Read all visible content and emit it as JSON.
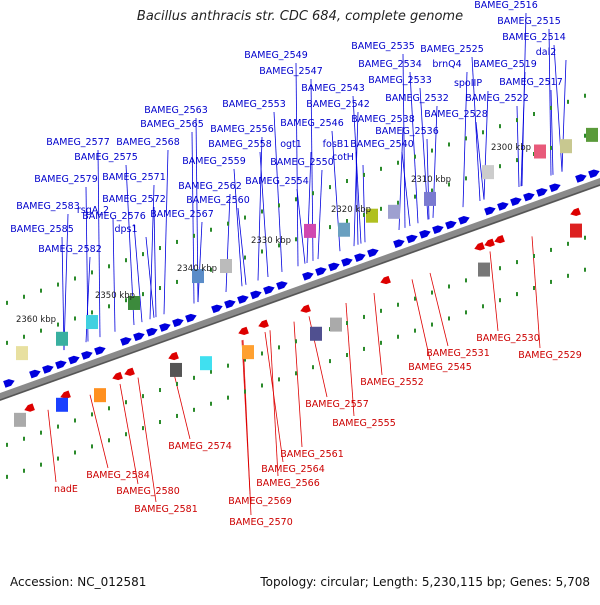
{
  "title": "Bacillus anthracis str. CDC 684, complete genome",
  "footer": {
    "accession": "Accession: NC_012581",
    "summary": "Topology: circular; Length: 5,230,115 bp; Genes: 5,708"
  },
  "colors": {
    "forward_genes": "#0000dd",
    "reverse_genes": "#dd0000",
    "axis": "#8a8a8a",
    "tick_marks": "#2a8a2a",
    "label_text_forward": "#0000cc",
    "label_text_reverse": "#cc0000"
  },
  "scale_ticks": [
    "2300 kbp",
    "2310 kbp",
    "2320 kbp",
    "2330 kbp",
    "2340 kbp",
    "2350 kbp",
    "2360 kbp"
  ],
  "forward_labels": [
    "BAMEG_2516",
    "BAMEG_2515",
    "BAMEG_2514",
    "dal2",
    "BAMEG_2535",
    "BAMEG_2525",
    "BAMEG_2519",
    "BAMEG_2549",
    "BAMEG_2534",
    "brnQ4",
    "BAMEG_2547",
    "BAMEG_2533",
    "spoIIP",
    "BAMEG_2517",
    "BAMEG_2543",
    "BAMEG_2532",
    "BAMEG_2522",
    "BAMEG_2553",
    "BAMEG_2542",
    "BAMEG_2563",
    "BAMEG_2528",
    "BAMEG_2538",
    "BAMEG_2565",
    "BAMEG_2546",
    "BAMEG_2556",
    "BAMEG_2536",
    "BAMEG_2558",
    "ogt1",
    "fosB1",
    "BAMEG_2540",
    "BAMEG_2568",
    "BAMEG_2577",
    "BAMEG_2575",
    "BAMEG_2550",
    "cotH",
    "BAMEG_2559",
    "BAMEG_2571",
    "BAMEG_2579",
    "BAMEG_2554",
    "BAMEG_2562",
    "BAMEG_2572",
    "BAMEG_2560",
    "BAMEG_2583",
    "rsgA_2",
    "BAMEG_2576",
    "BAMEG_2567",
    "BAMEG_2585",
    "dps1",
    "BAMEG_2582"
  ],
  "reverse_labels": [
    "BAMEG_2530",
    "BAMEG_2531",
    "BAMEG_2529",
    "BAMEG_2545",
    "BAMEG_2552",
    "BAMEG_2557",
    "BAMEG_2555",
    "BAMEG_2574",
    "BAMEG_2561",
    "BAMEG_2564",
    "BAMEG_2566",
    "BAMEG_2584",
    "nadE",
    "BAMEG_2580",
    "BAMEG_2569",
    "BAMEG_2581",
    "BAMEG_2570"
  ]
}
